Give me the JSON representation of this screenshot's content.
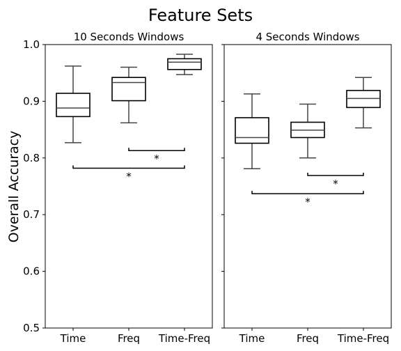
{
  "figure": {
    "suptitle": "Feature Sets",
    "ylabel": "Overall Accuracy"
  },
  "chart_data": [
    {
      "type": "box",
      "title": "10 Seconds Windows",
      "ylim": [
        0.5,
        1.0
      ],
      "yticks": [
        "0.5",
        "0.6",
        "0.7",
        "0.8",
        "0.9",
        "1.0"
      ],
      "categories": [
        "Time",
        "Freq",
        "Time-Freq"
      ],
      "boxes": [
        {
          "category": "Time",
          "whisker_low": 0.827,
          "q1": 0.873,
          "median": 0.888,
          "q3": 0.914,
          "whisker_high": 0.962
        },
        {
          "category": "Freq",
          "whisker_low": 0.862,
          "q1": 0.901,
          "median": 0.933,
          "q3": 0.942,
          "whisker_high": 0.96
        },
        {
          "category": "Time-Freq",
          "whisker_low": 0.947,
          "q1": 0.956,
          "median": 0.969,
          "q3": 0.975,
          "whisker_high": 0.983
        }
      ],
      "significance": [
        {
          "from": "Freq",
          "to": "Time-Freq",
          "y": 0.813,
          "label": "*"
        },
        {
          "from": "Time",
          "to": "Time-Freq",
          "y": 0.782,
          "label": "*"
        }
      ]
    },
    {
      "type": "box",
      "title": "4 Seconds Windows",
      "ylim": [
        0.5,
        1.0
      ],
      "yticks": [],
      "categories": [
        "Time",
        "Freq",
        "Time-Freq"
      ],
      "boxes": [
        {
          "category": "Time",
          "whisker_low": 0.781,
          "q1": 0.826,
          "median": 0.836,
          "q3": 0.871,
          "whisker_high": 0.913
        },
        {
          "category": "Freq",
          "whisker_low": 0.8,
          "q1": 0.836,
          "median": 0.849,
          "q3": 0.863,
          "whisker_high": 0.895
        },
        {
          "category": "Time-Freq",
          "whisker_low": 0.853,
          "q1": 0.889,
          "median": 0.905,
          "q3": 0.919,
          "whisker_high": 0.942
        }
      ],
      "significance": [
        {
          "from": "Freq",
          "to": "Time-Freq",
          "y": 0.769,
          "label": "*"
        },
        {
          "from": "Time",
          "to": "Time-Freq",
          "y": 0.737,
          "label": "*"
        }
      ]
    }
  ]
}
